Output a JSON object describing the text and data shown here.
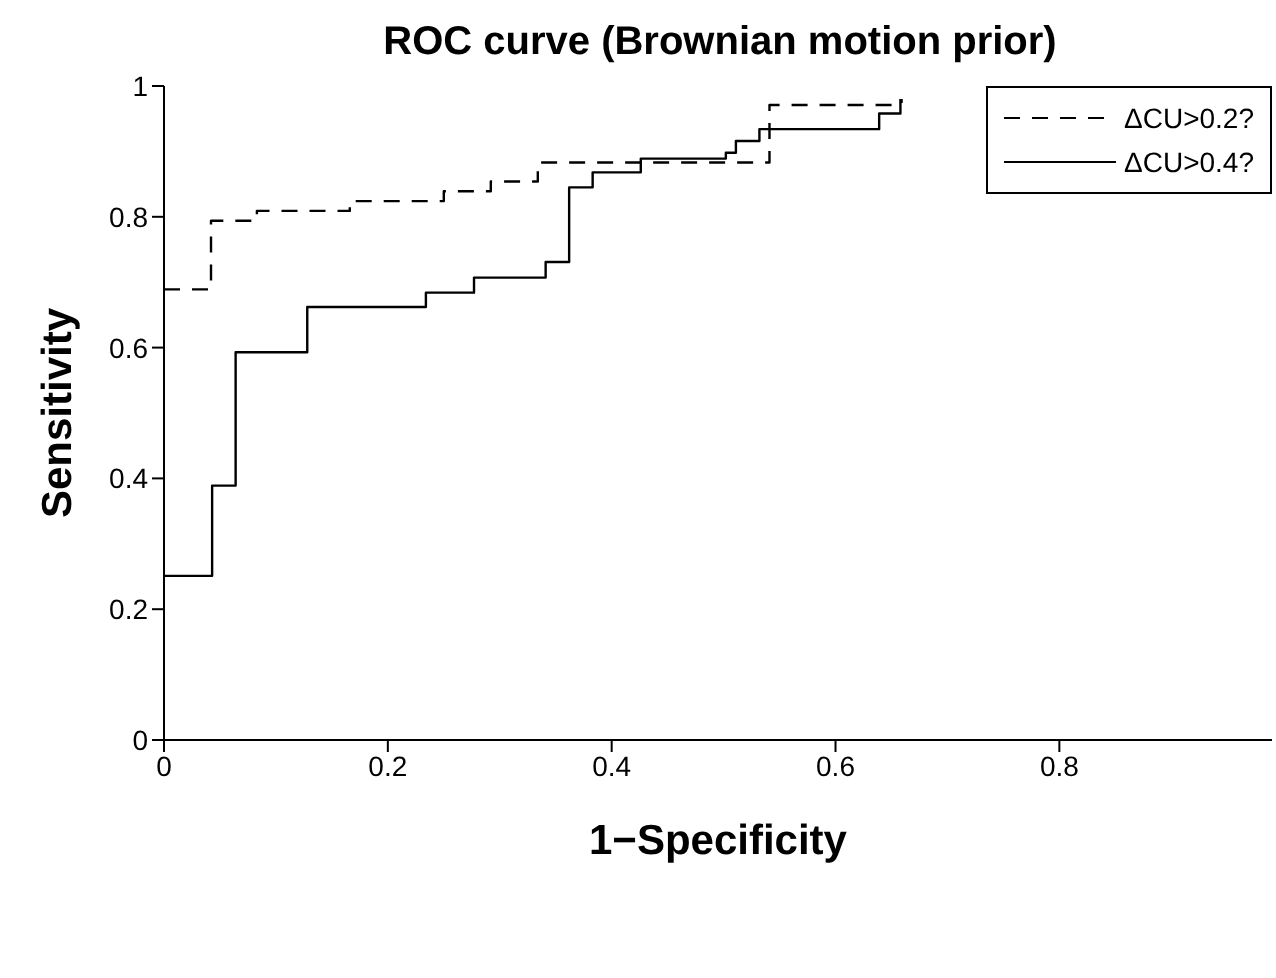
{
  "chart_data": {
    "type": "step",
    "title": "ROC curve (Brownian motion prior)",
    "xlabel": "1−Specificity",
    "ylabel": "Sensitivity",
    "xlim": [
      0,
      0.99
    ],
    "xticks": [
      0,
      0.2,
      0.4,
      0.6,
      0.8
    ],
    "ylim": [
      0,
      1
    ],
    "yticks": [
      0,
      0.2,
      0.4,
      0.6,
      0.8,
      1
    ],
    "grid": false,
    "legend": "top right",
    "marker": "none",
    "series": [
      {
        "name": "ΔCU>0.2?",
        "color": "#000000",
        "line_style": "dashed",
        "x": [
          0,
          0.042,
          0.083,
          0.166,
          0.25,
          0.292,
          0.334,
          0.541,
          0.659
        ],
        "values": [
          0.689,
          0.794,
          0.809,
          0.824,
          0.839,
          0.854,
          0.883,
          0.971,
          0.98
        ]
      },
      {
        "name": "ΔCU>0.4?",
        "color": "#000000",
        "line_style": "solid",
        "x": [
          0,
          0.043,
          0.064,
          0.128,
          0.234,
          0.277,
          0.341,
          0.362,
          0.383,
          0.426,
          0.502,
          0.511,
          0.532,
          0.639,
          0.658
        ],
        "values": [
          0.251,
          0.389,
          0.593,
          0.662,
          0.684,
          0.707,
          0.731,
          0.845,
          0.868,
          0.889,
          0.898,
          0.916,
          0.934,
          0.958,
          0.98
        ]
      }
    ]
  }
}
